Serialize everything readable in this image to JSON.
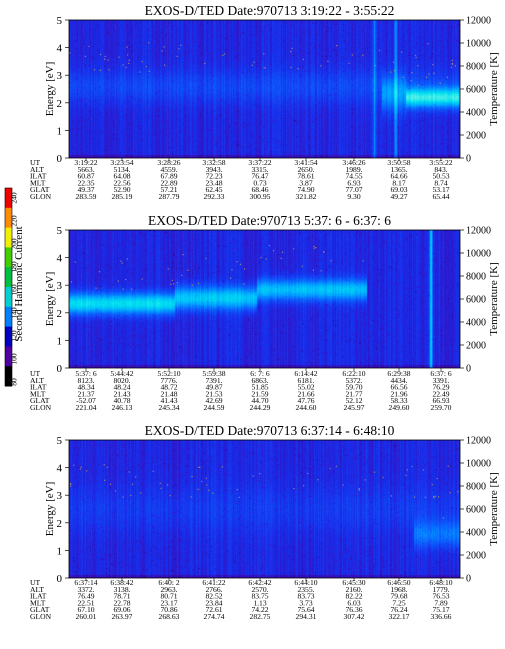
{
  "figure": {
    "colorbar": {
      "title": "Second Harmonic Current",
      "ticks": [
        "240",
        "220",
        "200",
        "180",
        "160",
        "140",
        "120",
        "100",
        "80"
      ],
      "colors": [
        "#f00000",
        "#ff8c00",
        "#f0f000",
        "#40d000",
        "#00c040",
        "#00d0d0",
        "#0080ff",
        "#0000c0",
        "#5000a0",
        "#000000"
      ]
    },
    "panels": [
      {
        "title": "EXOS-D/TED    Date:970713  3:19:22 - 3:55:22",
        "ylabel": "Energy [eV]",
        "y2label": "Temperature [K]",
        "yticks": [
          "0",
          "1",
          "2",
          "3",
          "4",
          "5"
        ],
        "y2ticks": [
          "0",
          "2000",
          "4000",
          "6000",
          "8000",
          "10000",
          "12000"
        ],
        "ann_labels": [
          "UT",
          "ALT",
          "ILAT",
          "MLT",
          "GLAT",
          "GLON"
        ],
        "ann_cols": [
          [
            "3:19:22",
            "5663.",
            "60.87",
            "22.35",
            "49.37",
            "283.59"
          ],
          [
            "3:23:54",
            "5134.",
            "64.08",
            "22.56",
            "52.90",
            "285.19"
          ],
          [
            "3:28:26",
            "4559.",
            "67.89",
            "22.89",
            "57.21",
            "287.79"
          ],
          [
            "3:32:58",
            "3943.",
            "72.23",
            "23.48",
            "62.45",
            "292.33"
          ],
          [
            "3:37:22",
            "3315.",
            "76.47",
            "0.73",
            "68.46",
            "300.95"
          ],
          [
            "3:41:54",
            "2650.",
            "78.61",
            "3.87",
            "74.90",
            "321.82"
          ],
          [
            "3:46:26",
            "1989.",
            "74.55",
            "6.93",
            "77.07",
            "9.30"
          ],
          [
            "3:50:58",
            "1365.",
            "64.66",
            "8.17",
            "69.03",
            "49.27"
          ],
          [
            "3:55:22",
            "843.",
            "50.53",
            "8.74",
            "53.17",
            "65.44"
          ]
        ]
      },
      {
        "title": "EXOS-D/TED    Date:970713  5:37: 6 - 6:37: 6",
        "ylabel": "Energy [eV]",
        "y2label": "Temperature [K]",
        "yticks": [
          "0",
          "1",
          "2",
          "3",
          "4",
          "5"
        ],
        "y2ticks": [
          "0",
          "2000",
          "4000",
          "6000",
          "8000",
          "10000",
          "12000"
        ],
        "ann_labels": [
          "UT",
          "ALT",
          "ILAT",
          "MLT",
          "GLAT",
          "GLON"
        ],
        "ann_cols": [
          [
            "5:37: 6",
            "8123.",
            "48.34",
            "21.37",
            "-52.07",
            "221.04"
          ],
          [
            "5:44:42",
            "8020.",
            "48.24",
            "21.43",
            "40.78",
            "246.13"
          ],
          [
            "5:52:10",
            "7776.",
            "48.72",
            "21.48",
            "41.43",
            "245.34"
          ],
          [
            "5:59:38",
            "7391.",
            "49.87",
            "21.53",
            "42.69",
            "244.59"
          ],
          [
            "6: 7: 6",
            "6863.",
            "51.85",
            "21.59",
            "44.70",
            "244.29"
          ],
          [
            "6:14:42",
            "6181.",
            "55.02",
            "21.66",
            "47.76",
            "244.60"
          ],
          [
            "6:22:10",
            "5372.",
            "59.70",
            "21.77",
            "52.12",
            "245.97"
          ],
          [
            "6:29:38",
            "4434.",
            "66.56",
            "21.96",
            "58.33",
            "249.60"
          ],
          [
            "6:37: 6",
            "3391.",
            "76.29",
            "22.49",
            "66.93",
            "259.70"
          ]
        ]
      },
      {
        "title": "EXOS-D/TED    Date:970713  6:37:14 - 6:48:10",
        "ylabel": "Energy [eV]",
        "y2label": "Temperature [K]",
        "yticks": [
          "0",
          "1",
          "2",
          "3",
          "4",
          "5"
        ],
        "y2ticks": [
          "0",
          "2000",
          "4000",
          "6000",
          "8000",
          "10000",
          "12000"
        ],
        "ann_labels": [
          "UT",
          "ALT",
          "ILAT",
          "MLT",
          "GLAT",
          "GLON"
        ],
        "ann_cols": [
          [
            "6:37:14",
            "3372.",
            "76.49",
            "22.51",
            "67.10",
            "260.01"
          ],
          [
            "6:38:42",
            "3138.",
            "78.71",
            "22.78",
            "69.06",
            "263.97"
          ],
          [
            "6:40: 2",
            "2963.",
            "80.71",
            "23.17",
            "70.86",
            "268.63"
          ],
          [
            "6:41:22",
            "2766.",
            "82.52",
            "23.84",
            "72.61",
            "274.74"
          ],
          [
            "6:42:42",
            "2570.",
            "83.75",
            "1.13",
            "74.22",
            "282.75"
          ],
          [
            "6:44:10",
            "2355.",
            "83.73",
            "3.73",
            "75.64",
            "294.31"
          ],
          [
            "6:45:30",
            "2160.",
            "82.22",
            "6.03",
            "76.36",
            "307.42"
          ],
          [
            "6:46:50",
            "1968.",
            "79.68",
            "7.25",
            "76.24",
            "322.17"
          ],
          [
            "6:48:10",
            "1779.",
            "76.53",
            "7.89",
            "75.17",
            "336.66"
          ]
        ]
      }
    ]
  },
  "chart_data": [
    {
      "type": "heatmap",
      "title": "EXOS-D/TED    Date:970713  3:19:22 - 3:55:22",
      "ylabel": "Energy [eV]",
      "y2label": "Temperature [K]",
      "ylim": [
        0,
        5
      ],
      "y2lim": [
        0,
        12000
      ],
      "x": [
        "3:19:22",
        "3:23:54",
        "3:28:26",
        "3:32:58",
        "3:37:22",
        "3:41:54",
        "3:46:26",
        "3:50:58",
        "3:55:22"
      ],
      "value_range": [
        80,
        240
      ],
      "features": [
        {
          "from": 0.0,
          "to": 1.0,
          "e_center": 2.6,
          "width": 0.9,
          "level": 0.1
        },
        {
          "from": 0.86,
          "to": 1.0,
          "e_center": 2.2,
          "width": 0.5,
          "level": 0.55
        },
        {
          "from": 0.8,
          "to": 0.86,
          "e_center": 2.3,
          "width": 0.9,
          "level": 0.25
        }
      ],
      "vlines": [
        {
          "x": 0.835,
          "level": 0.35
        },
        {
          "x": 0.78,
          "level": 0.25
        }
      ]
    },
    {
      "type": "heatmap",
      "title": "EXOS-D/TED    Date:970713  5:37: 6 - 6:37: 6",
      "ylabel": "Energy [eV]",
      "y2label": "Temperature [K]",
      "ylim": [
        0,
        5
      ],
      "y2lim": [
        0,
        12000
      ],
      "x": [
        "5:37: 6",
        "5:44:42",
        "5:52:10",
        "5:59:38",
        "6: 7: 6",
        "6:14:42",
        "6:22:10",
        "6:29:38",
        "6:37: 6"
      ],
      "value_range": [
        80,
        240
      ],
      "features": [
        {
          "from": 0.0,
          "to": 0.27,
          "e_center": 2.35,
          "width": 0.55,
          "level": 0.52
        },
        {
          "from": 0.27,
          "to": 0.48,
          "e_center": 2.55,
          "width": 0.6,
          "level": 0.45
        },
        {
          "from": 0.48,
          "to": 0.76,
          "e_center": 2.85,
          "width": 0.55,
          "level": 0.42
        }
      ],
      "vlines": [
        {
          "x": 0.925,
          "level": 0.55
        }
      ]
    },
    {
      "type": "heatmap",
      "title": "EXOS-D/TED    Date:970713  6:37:14 - 6:48:10",
      "ylabel": "Energy [eV]",
      "y2label": "Temperature [K]",
      "ylim": [
        0,
        5
      ],
      "y2lim": [
        0,
        12000
      ],
      "x": [
        "6:37:14",
        "6:38:42",
        "6:40: 2",
        "6:41:22",
        "6:42:42",
        "6:44:10",
        "6:45:30",
        "6:46:50",
        "6:48:10"
      ],
      "value_range": [
        80,
        240
      ],
      "features": [
        {
          "from": 0.0,
          "to": 1.0,
          "e_center": 2.5,
          "width": 1.2,
          "level": 0.06
        },
        {
          "from": 0.88,
          "to": 1.0,
          "e_center": 1.6,
          "width": 0.7,
          "level": 0.22
        }
      ],
      "vlines": []
    }
  ]
}
